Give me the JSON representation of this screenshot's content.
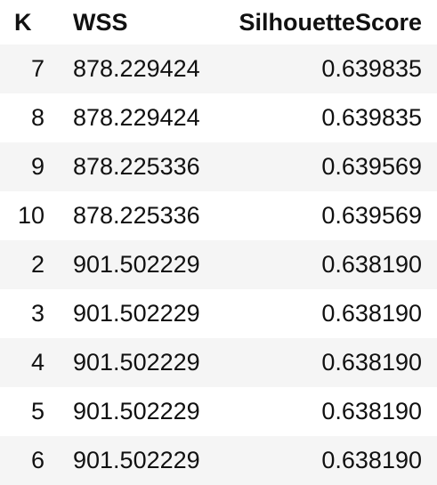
{
  "table": {
    "columns": [
      "K",
      "WSS",
      "SilhouetteScore"
    ],
    "rows": [
      {
        "k": "7",
        "wss": "878.229424",
        "score": "0.639835"
      },
      {
        "k": "8",
        "wss": "878.229424",
        "score": "0.639835"
      },
      {
        "k": "9",
        "wss": "878.225336",
        "score": "0.639569"
      },
      {
        "k": "10",
        "wss": "878.225336",
        "score": "0.639569"
      },
      {
        "k": "2",
        "wss": "901.502229",
        "score": "0.638190"
      },
      {
        "k": "3",
        "wss": "901.502229",
        "score": "0.638190"
      },
      {
        "k": "4",
        "wss": "901.502229",
        "score": "0.638190"
      },
      {
        "k": "5",
        "wss": "901.502229",
        "score": "0.638190"
      },
      {
        "k": "6",
        "wss": "901.502229",
        "score": "0.638190"
      }
    ]
  }
}
